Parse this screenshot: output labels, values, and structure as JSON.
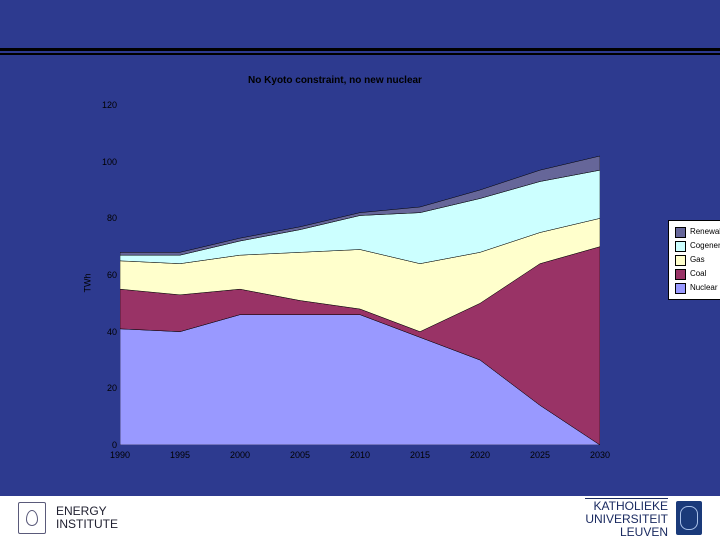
{
  "slide": {
    "background_color": "#2d3a8f"
  },
  "chart": {
    "type": "area-stacked",
    "title": "No Kyoto constraint, no new nuclear",
    "title_fontsize": 10,
    "ylabel": "TWh",
    "label_fontsize": 9,
    "background_color": "#2d3a8f",
    "xlim": [
      1990,
      2030
    ],
    "ylim": [
      0,
      120
    ],
    "ytick_step": 20,
    "yticks": [
      0,
      20,
      40,
      60,
      80,
      100,
      120
    ],
    "xticks": [
      1990,
      1995,
      2000,
      2005,
      2010,
      2015,
      2020,
      2025,
      2030
    ],
    "grid": false,
    "series_order_bottom_to_top": [
      "Nuclear",
      "Coal",
      "Gas",
      "Cogeneration",
      "Renewables"
    ],
    "legend_order_top_to_bottom": [
      "Renewables",
      "Cogeneration",
      "Gas",
      "Coal",
      "Nuclear"
    ],
    "series": {
      "Nuclear": {
        "color": "#9999ff",
        "values": [
          41,
          40,
          46,
          46,
          46,
          38,
          30,
          14,
          0
        ]
      },
      "Coal": {
        "color": "#993366",
        "values": [
          14,
          13,
          9,
          5,
          2,
          2,
          20,
          50,
          70
        ]
      },
      "Gas": {
        "color": "#ffffcc",
        "values": [
          10,
          11,
          12,
          17,
          21,
          24,
          18,
          11,
          10
        ]
      },
      "Cogeneration": {
        "color": "#ccffff",
        "values": [
          2,
          3,
          5,
          8,
          12,
          18,
          19,
          18,
          17
        ]
      },
      "Renewables": {
        "color": "#666699",
        "values": [
          1,
          1,
          1,
          1,
          1,
          2,
          3,
          4,
          5
        ]
      }
    },
    "legend": {
      "position": "right",
      "background": "#ffffff",
      "border_color": "#000000",
      "fontsize": 8
    },
    "tick_fontsize": 9,
    "tick_color": "#000000"
  },
  "footer": {
    "left": {
      "line1": "ENERGY",
      "line2": "INSTITUTE"
    },
    "right": {
      "line1": "KATHOLIEKE",
      "line2": "UNIVERSITEIT",
      "line3": "LEUVEN"
    },
    "background": "#ffffff"
  }
}
